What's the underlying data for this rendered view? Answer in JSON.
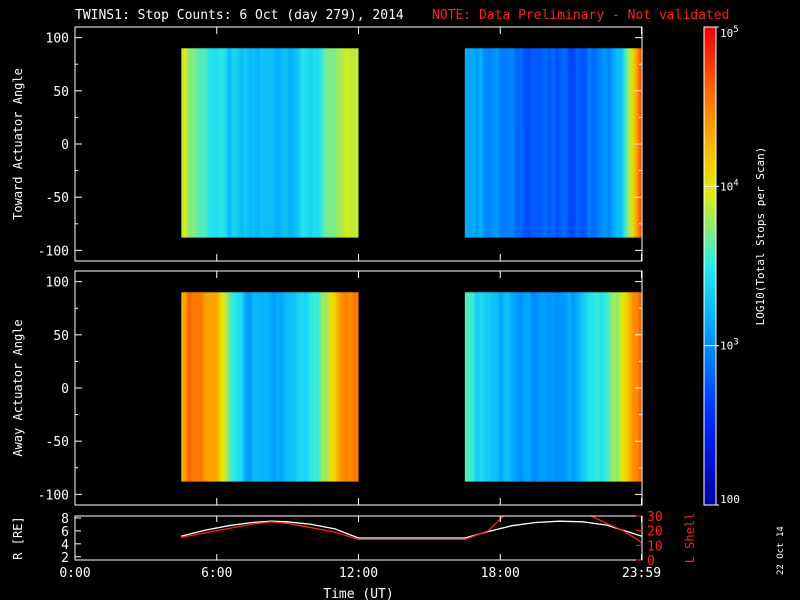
{
  "title": {
    "main": "TWINS1: Stop Counts:  6 Oct (day 279), 2014",
    "note": "NOTE: Data Preliminary - Not validated"
  },
  "stamp": "22 Oct 14",
  "colors": {
    "background": "#000000",
    "axis": "#ffffff",
    "note": "#ff2020",
    "r_line": "#ffffff",
    "lshell_line": "#ff2020"
  },
  "chart_data": [
    {
      "type": "heatmap",
      "panel": "top",
      "ylabel": "Toward Actuator Angle",
      "ylim": [
        -110,
        110
      ],
      "yticks": [
        -100,
        -50,
        0,
        50,
        100
      ],
      "xlim": [
        0,
        24
      ],
      "angle_range": [
        -88,
        90
      ],
      "data_intervals": [
        {
          "start": 4.5,
          "end": 12.0
        },
        {
          "start": 16.5,
          "end": 23.98
        }
      ],
      "profile_hours": [
        4.5,
        4.8,
        5.2,
        5.8,
        6.5,
        7.3,
        8.3,
        9.3,
        10.3,
        11.0,
        11.6,
        12.0,
        16.5,
        17.0,
        17.5,
        18.5,
        19.5,
        20.5,
        21.5,
        22.3,
        23.0,
        23.4,
        23.7,
        23.98
      ],
      "profile_log_counts": [
        3.93,
        3.82,
        3.65,
        3.5,
        3.3,
        3.22,
        3.22,
        3.3,
        3.48,
        3.7,
        3.88,
        3.92,
        3.25,
        3.12,
        3.05,
        2.88,
        2.78,
        2.75,
        2.8,
        2.95,
        3.2,
        3.6,
        4.3,
        4.7
      ]
    },
    {
      "type": "heatmap",
      "panel": "middle",
      "ylabel": "Away Actuator Angle",
      "ylim": [
        -110,
        110
      ],
      "yticks": [
        -100,
        -50,
        0,
        50,
        100
      ],
      "xlim": [
        0,
        24
      ],
      "angle_range": [
        -88,
        90
      ],
      "data_intervals": [
        {
          "start": 4.5,
          "end": 12.0
        },
        {
          "start": 16.5,
          "end": 23.98
        }
      ],
      "profile_hours": [
        4.5,
        4.8,
        5.3,
        6.0,
        6.6,
        7.3,
        8.3,
        9.3,
        10.2,
        10.9,
        11.4,
        12.0,
        16.5,
        17.0,
        17.5,
        18.5,
        19.5,
        20.5,
        21.5,
        22.3,
        23.0,
        23.4,
        23.7,
        23.98
      ],
      "profile_log_counts": [
        4.3,
        4.55,
        4.5,
        4.25,
        3.6,
        3.15,
        3.1,
        3.25,
        3.5,
        4.0,
        4.45,
        4.5,
        3.6,
        3.4,
        3.3,
        3.15,
        3.0,
        3.05,
        3.25,
        3.55,
        3.85,
        4.1,
        4.5,
        4.6
      ]
    },
    {
      "type": "line",
      "panel": "bottom",
      "ylabel": "R [RE]",
      "ylabel_right": "L Shell",
      "xlabel": "Time (UT)",
      "xlim": [
        0,
        24
      ],
      "xticks": [
        0,
        6,
        12,
        18,
        23.98
      ],
      "xtick_labels": [
        "0:00",
        "6:00",
        "12:00",
        "18:00",
        "23:59"
      ],
      "ylim": [
        1.5,
        8.3
      ],
      "yticks": [
        2,
        4,
        6,
        8
      ],
      "ylim_right": [
        0,
        30
      ],
      "yticks_right": [
        0,
        10,
        20,
        30
      ],
      "series": [
        {
          "name": "R [RE]",
          "color": "#ffffff",
          "axis": "left",
          "x": [
            4.5,
            5.5,
            6.5,
            7.5,
            8.3,
            9.0,
            10.0,
            11.0,
            12.0,
            13.0,
            15.0,
            16.5,
            17.5,
            18.5,
            19.5,
            20.5,
            21.5,
            22.5,
            23.98
          ],
          "y": [
            5.2,
            6.1,
            6.8,
            7.3,
            7.5,
            7.4,
            7.0,
            6.3,
            4.9,
            4.9,
            4.9,
            4.9,
            5.9,
            6.8,
            7.3,
            7.5,
            7.4,
            6.9,
            5.2
          ]
        },
        {
          "name": "L Shell",
          "color": "#ff2020",
          "axis": "right",
          "x": [
            4.5,
            5.5,
            6.5,
            7.5,
            8.3,
            9.0,
            10.0,
            11.0,
            12.0,
            13.0,
            15.0,
            16.5,
            17.5,
            18.2,
            21.7,
            22.5,
            23.2,
            23.98
          ],
          "y": [
            15.5,
            18.5,
            21.5,
            24.5,
            26.0,
            25.0,
            22.0,
            19.0,
            14.0,
            14.0,
            14.0,
            14.0,
            20.0,
            31.0,
            31.0,
            25.0,
            20.0,
            12.0
          ]
        }
      ]
    },
    {
      "type": "colorbar",
      "label": "LOG10(Total Stops per Scan)",
      "range_log": [
        2,
        5
      ],
      "tick_labels": [
        "100",
        "10^3",
        "10^4",
        "10^5"
      ],
      "tick_values_log": [
        2,
        3,
        4,
        5
      ]
    }
  ]
}
